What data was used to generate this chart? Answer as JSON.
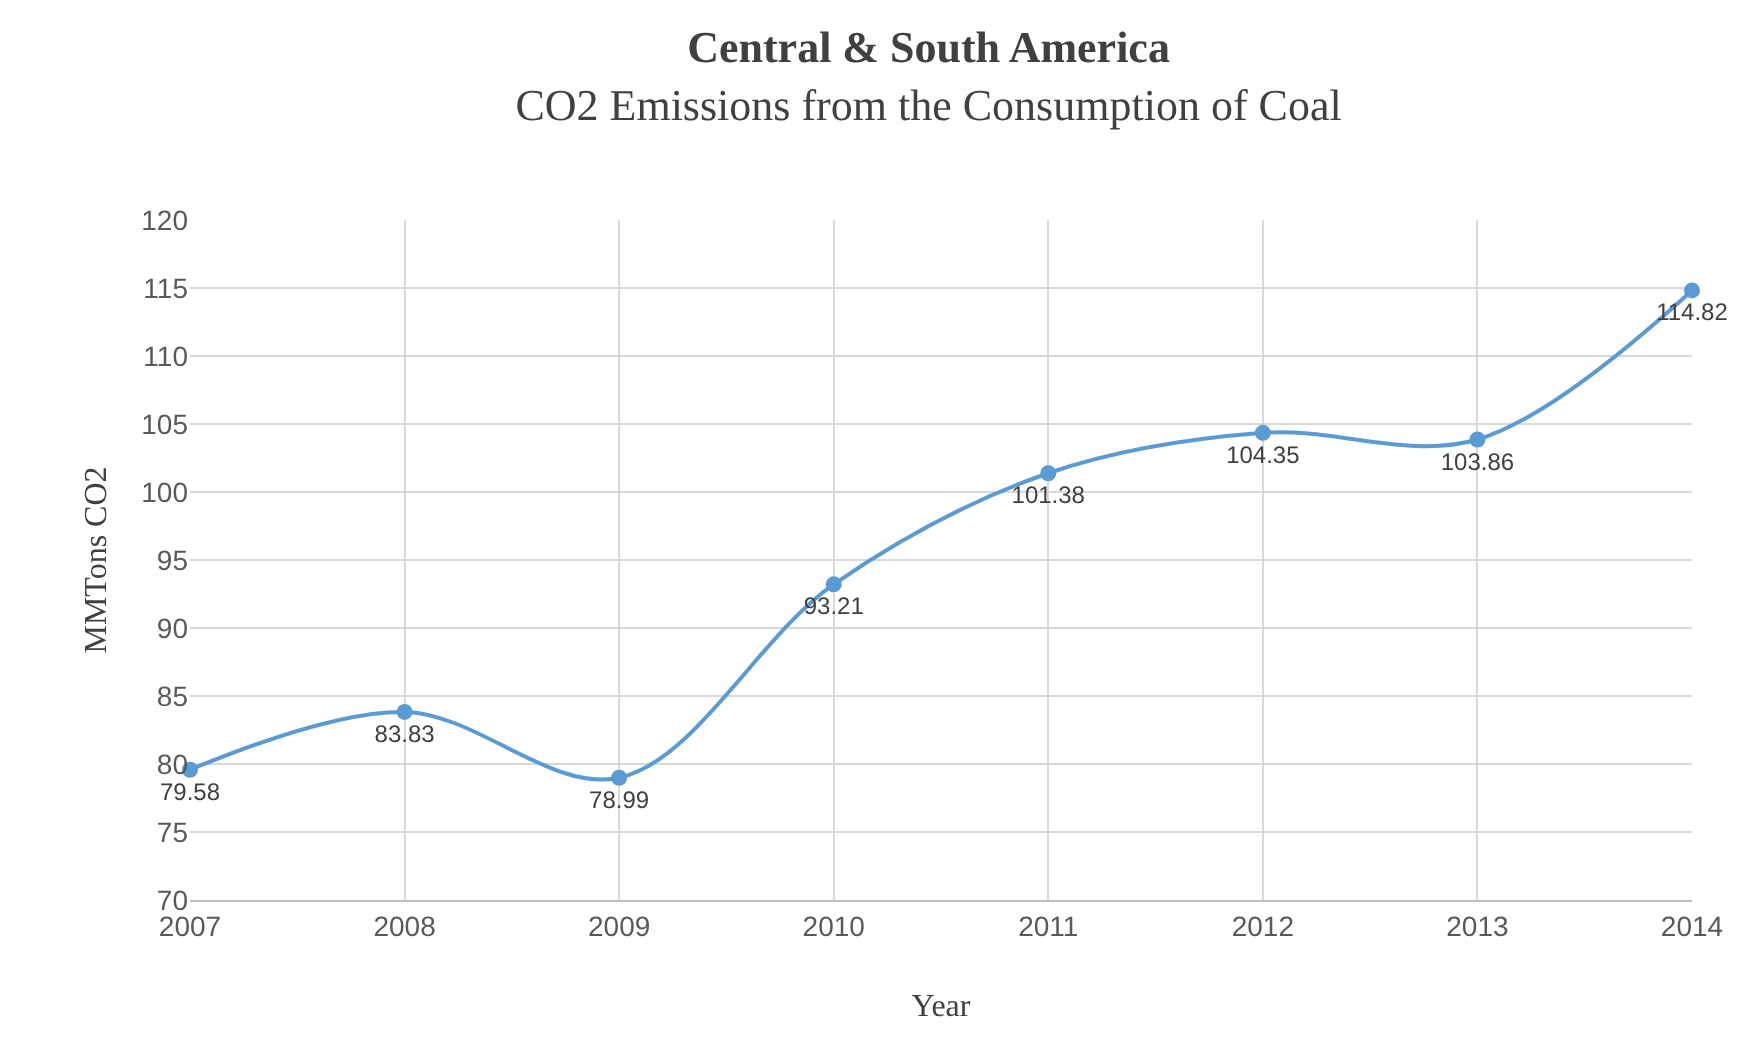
{
  "chart_data": {
    "type": "line",
    "title": "Central & South America",
    "subtitle": "CO2 Emissions from the Consumption of Coal",
    "xlabel": "Year",
    "ylabel": "MMTons CO2",
    "categories": [
      "2007",
      "2008",
      "2009",
      "2010",
      "2011",
      "2012",
      "2013",
      "2014"
    ],
    "series": [
      {
        "color": "#5b9bd5",
        "values": [
          79.58,
          83.83,
          78.99,
          93.21,
          101.38,
          104.35,
          103.86,
          114.82
        ]
      }
    ],
    "ylim": [
      70,
      120
    ],
    "yticks": [
      70,
      75,
      80,
      85,
      90,
      95,
      100,
      105,
      110,
      115,
      120
    ],
    "grid": true,
    "data_labels": true,
    "marker": "circle",
    "line_style": "solid"
  }
}
